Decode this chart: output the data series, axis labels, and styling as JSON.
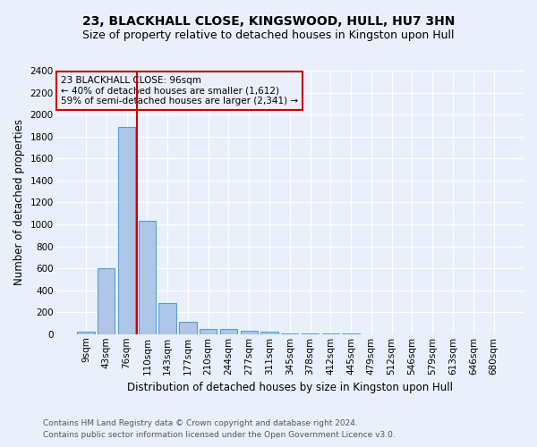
{
  "title": "23, BLACKHALL CLOSE, KINGSWOOD, HULL, HU7 3HN",
  "subtitle": "Size of property relative to detached houses in Kingston upon Hull",
  "xlabel": "Distribution of detached houses by size in Kingston upon Hull",
  "ylabel": "Number of detached properties",
  "footer_line1": "Contains HM Land Registry data © Crown copyright and database right 2024.",
  "footer_line2": "Contains public sector information licensed under the Open Government Licence v3.0.",
  "bin_labels": [
    "9sqm",
    "43sqm",
    "76sqm",
    "110sqm",
    "143sqm",
    "177sqm",
    "210sqm",
    "244sqm",
    "277sqm",
    "311sqm",
    "345sqm",
    "378sqm",
    "412sqm",
    "445sqm",
    "479sqm",
    "512sqm",
    "546sqm",
    "579sqm",
    "613sqm",
    "646sqm",
    "680sqm"
  ],
  "bar_values": [
    20,
    600,
    1890,
    1030,
    285,
    115,
    50,
    45,
    28,
    20,
    5,
    5,
    3,
    3,
    2,
    2,
    1,
    1,
    1,
    1,
    1
  ],
  "bar_color": "#aec6e8",
  "bar_edge_color": "#5b9bd5",
  "annotation_line1": "23 BLACKHALL CLOSE: 96sqm",
  "annotation_line2": "← 40% of detached houses are smaller (1,612)",
  "annotation_line3": "59% of semi-detached houses are larger (2,341) →",
  "annotation_box_color": "#cc0000",
  "property_line_x": 2.5,
  "ylim": [
    0,
    2400
  ],
  "yticks": [
    0,
    200,
    400,
    600,
    800,
    1000,
    1200,
    1400,
    1600,
    1800,
    2000,
    2200,
    2400
  ],
  "bg_color": "#eaf0fb",
  "grid_color": "#ffffff",
  "title_fontsize": 10,
  "subtitle_fontsize": 9,
  "tick_fontsize": 7.5,
  "ylabel_fontsize": 8.5,
  "xlabel_fontsize": 8.5,
  "annotation_fontsize": 7.5,
  "footer_fontsize": 6.5
}
